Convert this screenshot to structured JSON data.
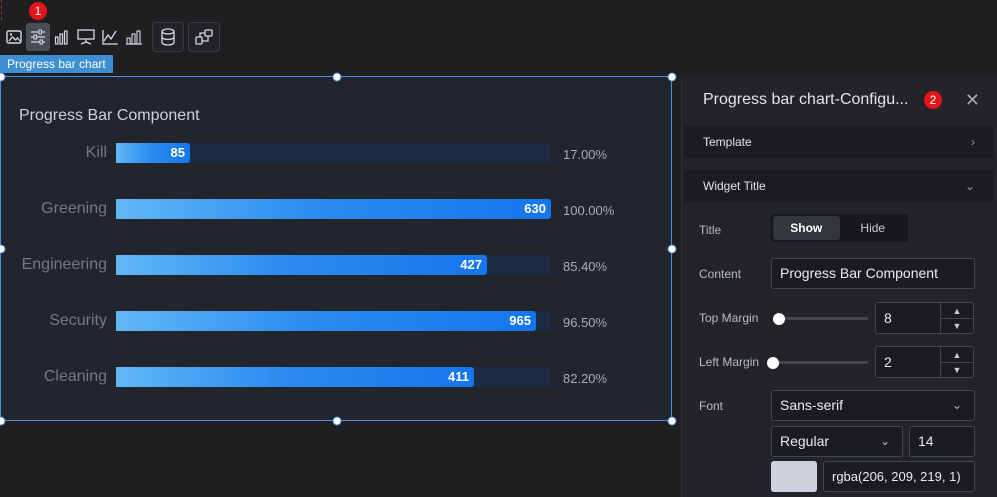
{
  "toolbar": {
    "badge": "1",
    "icons": [
      "image-icon",
      "settings-sliders-icon",
      "bar-chart-icon",
      "map-marker-icon",
      "line-axes-icon",
      "column-chart-icon",
      "database-icon",
      "link-icon"
    ]
  },
  "selection_tag": "Progress bar chart",
  "widget": {
    "title": "Progress Bar Component",
    "accent": "#2c8cf0",
    "track_color": "#1d2b45"
  },
  "chart_data": {
    "type": "bar",
    "title": "Progress Bar Component",
    "categories": [
      "Kill",
      "Greening",
      "Engineering",
      "Security",
      "Cleaning"
    ],
    "values": [
      85,
      630,
      427,
      965,
      411
    ],
    "percent_labels": [
      "17.00%",
      "100.00%",
      "85.40%",
      "96.50%",
      "82.20%"
    ],
    "fill_fraction": [
      0.17,
      1.0,
      0.854,
      0.965,
      0.822
    ]
  },
  "panel": {
    "title": "Progress bar chart-Configu...",
    "badge": "2",
    "close": "✕",
    "sections": {
      "template": "Template",
      "widget_title": "Widget Title"
    },
    "fields": {
      "title_label": "Title",
      "title_show": "Show",
      "title_hide": "Hide",
      "content_label": "Content",
      "content_value": "Progress Bar Component",
      "top_margin_label": "Top Margin",
      "top_margin_value": "8",
      "left_margin_label": "Left Margin",
      "left_margin_value": "2",
      "font_label": "Font",
      "font_family": "Sans-serif",
      "font_weight": "Regular",
      "font_size": "14",
      "font_color": "rgba(206, 209, 219, 1)"
    }
  }
}
